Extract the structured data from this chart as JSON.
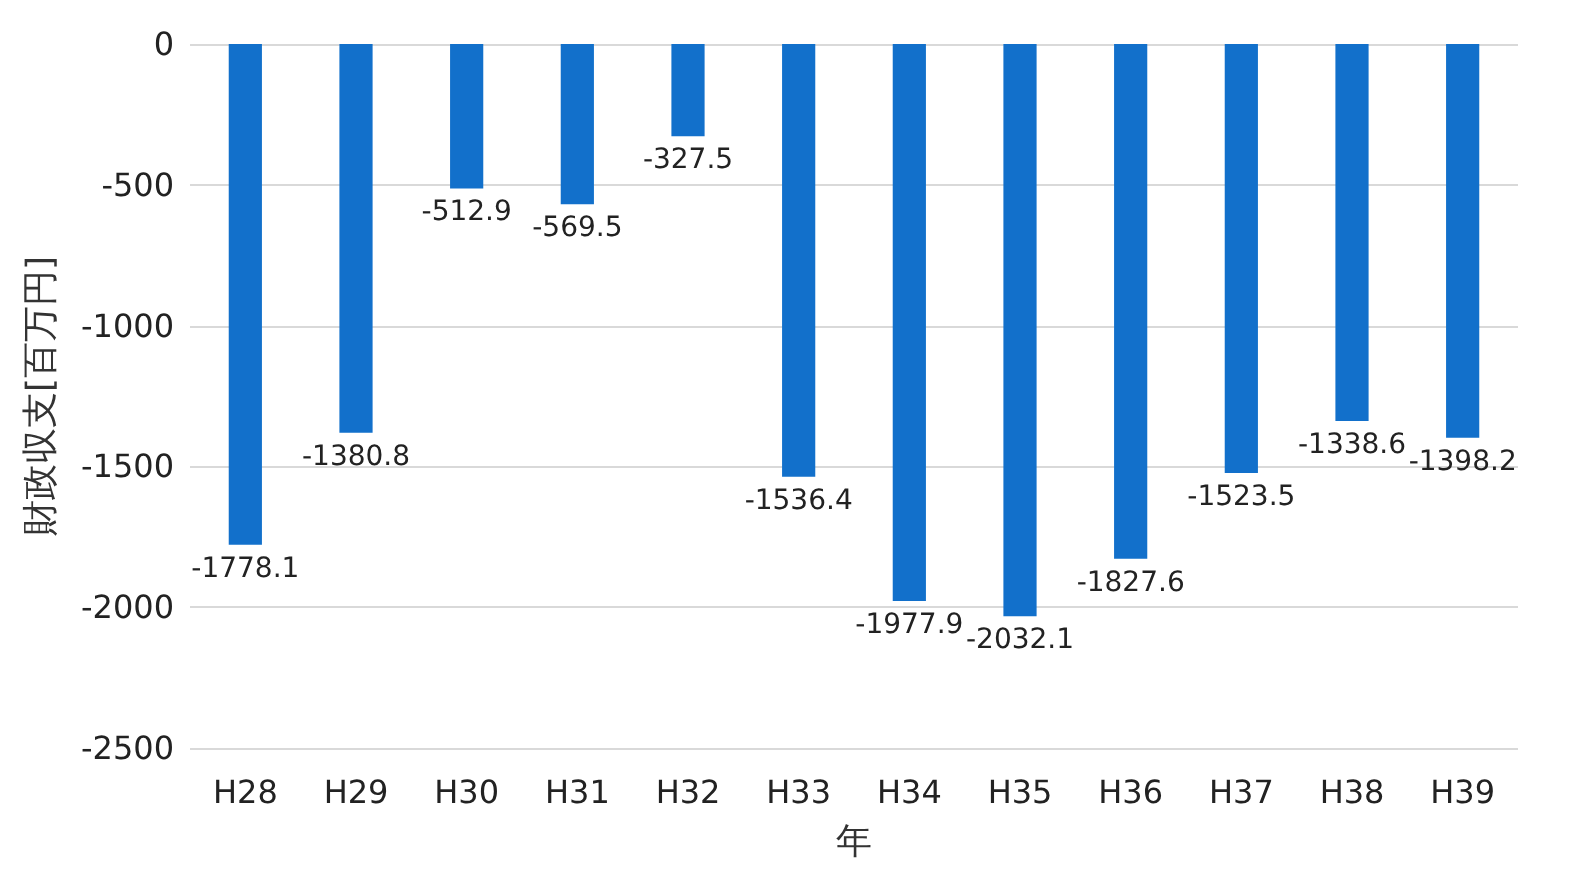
{
  "chart_data": {
    "type": "bar",
    "xlabel": "年",
    "ylabel": "財政収支[百万円]",
    "categories": [
      "H28",
      "H29",
      "H30",
      "H31",
      "H32",
      "H33",
      "H34",
      "H35",
      "H36",
      "H37",
      "H38",
      "H39"
    ],
    "series": [
      {
        "color": "#1270cb",
        "values": [
          -1778.1,
          -1380.8,
          -512.9,
          -569.5,
          -327.5,
          -1536.4,
          -1977.9,
          -2032.1,
          -1827.6,
          -1523.5,
          -1338.6,
          -1398.2
        ]
      }
    ],
    "ylim": [
      -2500,
      0
    ],
    "yticks": [
      0,
      -500,
      -1000,
      -1500,
      -2000,
      -2500
    ],
    "grid": "y",
    "data_labels": true
  }
}
